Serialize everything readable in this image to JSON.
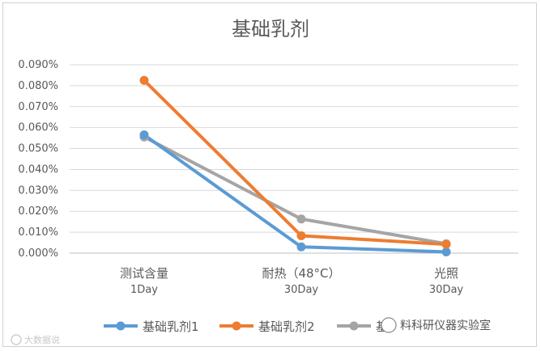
{
  "chart_data": {
    "type": "line",
    "title": "基础乳剂",
    "categories": [
      {
        "label": "测试含量",
        "sub": "1Day"
      },
      {
        "label": "耐热（48°C）",
        "sub": "30Day"
      },
      {
        "label": "光照",
        "sub": "30Day"
      }
    ],
    "y_ticks": [
      "0.000%",
      "0.010%",
      "0.020%",
      "0.030%",
      "0.040%",
      "0.050%",
      "0.060%",
      "0.070%",
      "0.080%",
      "0.090%"
    ],
    "ylim": [
      0,
      0.09
    ],
    "grid": true,
    "legend_position": "bottom",
    "series": [
      {
        "name": "基础乳剂1",
        "color": "#5b9bd5",
        "values": [
          0.0565,
          0.003,
          0.0006
        ]
      },
      {
        "name": "基础乳剂2",
        "color": "#ed7d31",
        "values": [
          0.0825,
          0.0083,
          0.0042
        ]
      },
      {
        "name": "基础乳剂3",
        "color": "#a5a5a5",
        "values": [
          0.0555,
          0.0163,
          0.0045
        ]
      }
    ]
  },
  "watermark": {
    "logo_text": "大数据说",
    "text": "料科研仪器实验室"
  }
}
